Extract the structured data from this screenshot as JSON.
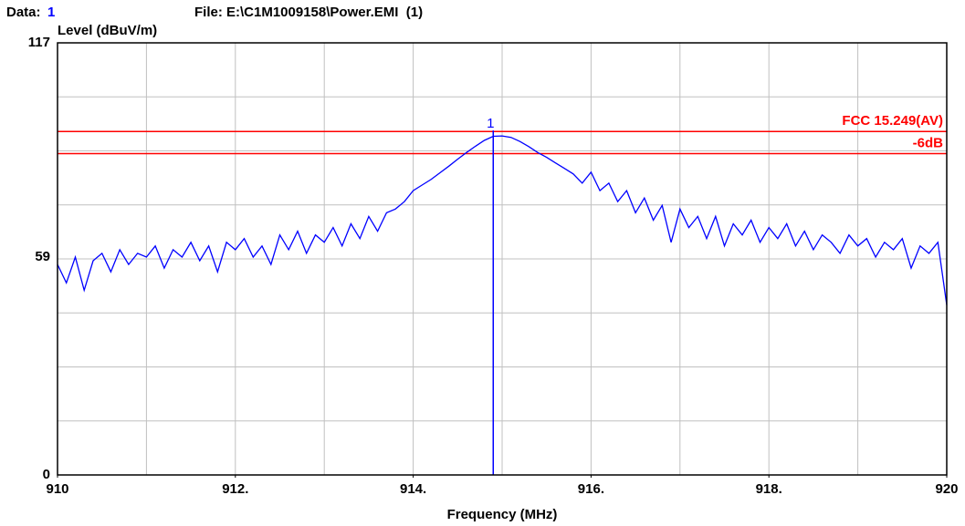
{
  "chart_data": {
    "type": "line",
    "header_label": "Data:",
    "header_id": "1",
    "file": "File: E:\\C1M1009158\\Power.EMI  (1)",
    "ylabel": "Level (dBuV/m)",
    "xlabel": "Frequency (MHz)",
    "xlim": [
      910,
      920
    ],
    "ylim": [
      0,
      117
    ],
    "xticks": [
      910,
      {
        "value": 912,
        "label": "912."
      },
      {
        "value": 914,
        "label": "914."
      },
      {
        "value": 916,
        "label": "916."
      },
      {
        "value": 918,
        "label": "918."
      },
      920
    ],
    "yticks": [
      0,
      59,
      117
    ],
    "xgrid": [
      911,
      912,
      913,
      914,
      915,
      916,
      917,
      918,
      919
    ],
    "ygrid": [
      14.625,
      29.25,
      43.875,
      58.5,
      73.125,
      87.75,
      102.375
    ],
    "grid": true,
    "limits": [
      {
        "name": "FCC 15.249(AV)",
        "value": 93,
        "color": "#ff0000"
      },
      {
        "name": "-6dB",
        "value": 87,
        "color": "#ff0000"
      }
    ],
    "marker": {
      "label": "1",
      "x": 914.9,
      "value": 91.8,
      "color": "#0000ff"
    },
    "series": [
      {
        "color": "#0000ff",
        "x": [
          910.0,
          910.1,
          910.2,
          910.3,
          910.4,
          910.5,
          910.6,
          910.7,
          910.8,
          910.9,
          911.0,
          911.1,
          911.2,
          911.3,
          911.4,
          911.5,
          911.6,
          911.7,
          911.8,
          911.9,
          912.0,
          912.1,
          912.2,
          912.3,
          912.4,
          912.5,
          912.6,
          912.7,
          912.8,
          912.9,
          913.0,
          913.1,
          913.2,
          913.3,
          913.4,
          913.5,
          913.6,
          913.7,
          913.8,
          913.9,
          914.0,
          914.1,
          914.2,
          914.3,
          914.4,
          914.5,
          914.6,
          914.7,
          914.8,
          914.9,
          915.0,
          915.1,
          915.2,
          915.3,
          915.4,
          915.5,
          915.6,
          915.7,
          915.8,
          915.9,
          916.0,
          916.1,
          916.2,
          916.3,
          916.4,
          916.5,
          916.6,
          916.7,
          916.8,
          916.9,
          917.0,
          917.1,
          917.2,
          917.3,
          917.4,
          917.5,
          917.6,
          917.7,
          917.8,
          917.9,
          918.0,
          918.1,
          918.2,
          918.3,
          918.4,
          918.5,
          918.6,
          918.7,
          918.8,
          918.9,
          919.0,
          919.1,
          919.2,
          919.3,
          919.4,
          919.5,
          919.6,
          919.7,
          919.8,
          919.9,
          920.0
        ],
        "values": [
          57,
          52,
          59,
          50,
          58,
          60,
          55,
          61,
          57,
          60,
          59,
          62,
          56,
          61,
          59,
          63,
          58,
          62,
          55,
          63,
          61,
          64,
          59,
          62,
          57,
          65,
          61,
          66,
          60,
          65,
          63,
          67,
          62,
          68,
          64,
          70,
          66,
          71,
          72,
          74,
          77,
          78.5,
          80,
          81.8,
          83.6,
          85.5,
          87.3,
          89,
          90.6,
          91.7,
          91.8,
          91.4,
          90.3,
          88.9,
          87.3,
          86,
          84.5,
          83,
          81.5,
          79,
          82,
          77,
          79,
          74,
          77,
          71,
          75,
          69,
          73,
          63,
          72,
          67,
          70,
          64,
          70,
          62,
          68,
          65,
          69,
          63,
          67,
          64,
          68,
          62,
          66,
          61,
          65,
          63,
          60,
          65,
          62,
          64,
          59,
          63,
          61,
          64,
          56,
          62,
          60,
          63,
          46
        ]
      }
    ]
  }
}
